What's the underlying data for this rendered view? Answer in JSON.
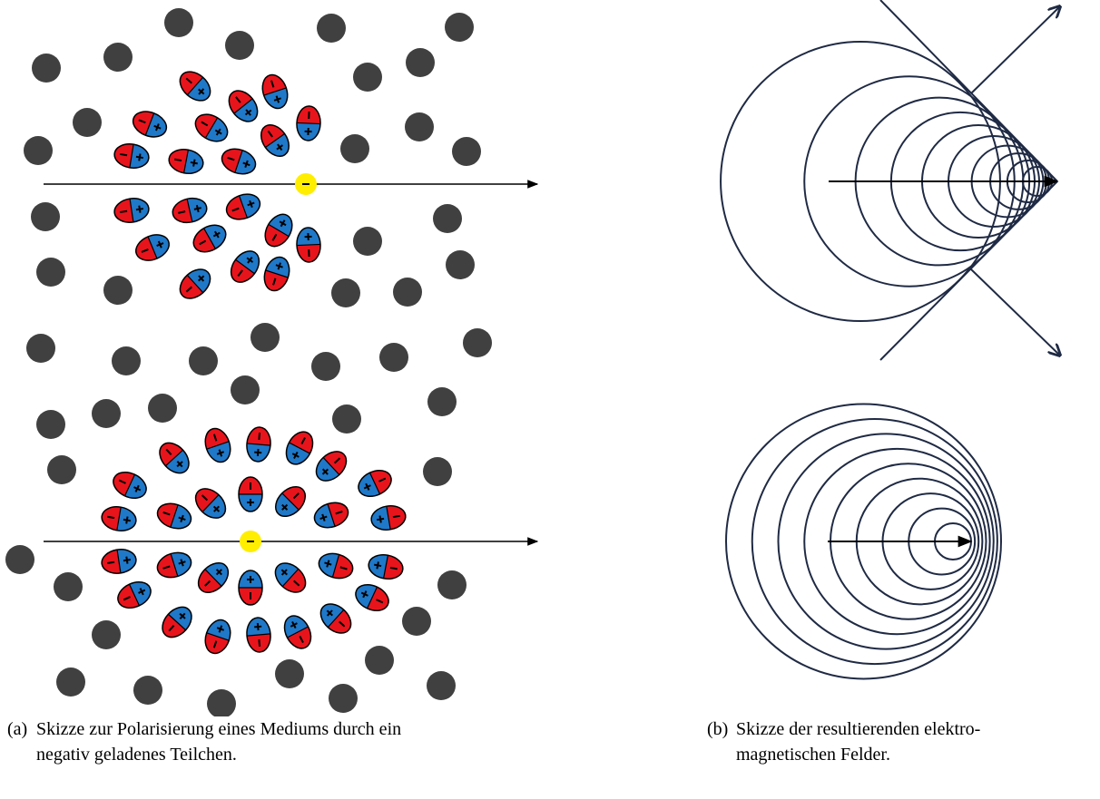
{
  "subfigures": [
    {
      "label": "(a)",
      "caption_lines": [
        "Skizze zur Polarisierung eines Mediums durch ein",
        "negativ geladenes Teilchen."
      ]
    },
    {
      "label": "(b)",
      "caption_lines": [
        "Skizze der resultierenden elektro-",
        "magnetischen Felder."
      ]
    }
  ]
}
